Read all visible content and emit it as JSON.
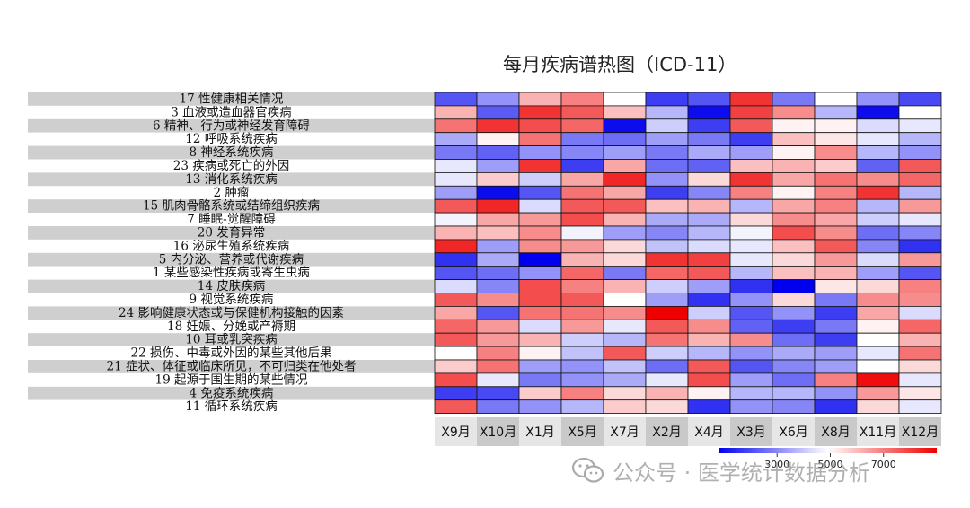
{
  "chart_data": {
    "type": "heatmap",
    "title": "每月疾病谱热图（ICD-11）",
    "rows": [
      "17 性健康相关情况",
      "3 血液或造血器官疾病",
      "6 精神、行为或神经发育障碍",
      "12 呼吸系统疾病",
      "8 神经系统疾病",
      "23 疾病或死亡的外因",
      "13 消化系统疾病",
      "2 肿瘤",
      "15 肌肉骨骼系统或结缔组织疾病",
      "7 睡眠-觉醒障碍",
      "20 发育异常",
      "16 泌尿生殖系统疾病",
      "5 内分泌、营养或代谢疾病",
      "1 某些感染性疾病或寄生虫病",
      "14 皮肤疾病",
      "9 视觉系统疾病",
      "24 影响健康状态或与保健机构接触的因素",
      "18 妊娠、分娩或产褥期",
      "10 耳或乳突疾病",
      "22 损伤、中毒或外因的某些其他后果",
      "21 症状、体征或临床所见，不可归类在他处者",
      "19 起源于围生期的某些情况",
      "4 免疫系统疾病",
      "11 循环系统疾病"
    ],
    "columns": [
      "X9月",
      "X10月",
      "X1月",
      "X5月",
      "X7月",
      "X2月",
      "X4月",
      "X3月",
      "X6月",
      "X8月",
      "X11月",
      "X12月"
    ],
    "values": [
      [
        2200,
        3200,
        6200,
        7000,
        5000,
        1800,
        2200,
        8200,
        2800,
        5000,
        3200,
        2000
      ],
      [
        6200,
        2300,
        8200,
        7600,
        6000,
        3800,
        1000,
        8000,
        6800,
        3800,
        1000,
        5000
      ],
      [
        7200,
        8200,
        7800,
        7400,
        1000,
        4200,
        1800,
        7600,
        5200,
        5200,
        4400,
        4600
      ],
      [
        3600,
        5200,
        7200,
        2800,
        2600,
        3400,
        2800,
        1800,
        6000,
        5400,
        4600,
        3800
      ],
      [
        2800,
        2400,
        3200,
        3000,
        3400,
        2800,
        3600,
        3400,
        5200,
        6800,
        3800,
        3200
      ],
      [
        4600,
        3400,
        8200,
        1800,
        6400,
        2600,
        2400,
        6000,
        6200,
        5800,
        2400,
        7600
      ],
      [
        4600,
        5800,
        4200,
        6400,
        8400,
        3200,
        5600,
        8200,
        6400,
        7200,
        6800,
        7400
      ],
      [
        3400,
        1000,
        2200,
        7200,
        6400,
        1800,
        3000,
        7000,
        5200,
        7000,
        8200,
        3800
      ],
      [
        7600,
        8400,
        4400,
        7600,
        7600,
        6000,
        6200,
        3800,
        6400,
        7000,
        3800,
        6600
      ],
      [
        4800,
        6400,
        6600,
        7800,
        6200,
        3600,
        3600,
        5600,
        6800,
        6400,
        4200,
        4600
      ],
      [
        6200,
        6000,
        6800,
        4800,
        3400,
        3000,
        3800,
        4800,
        7800,
        6800,
        2600,
        3000
      ],
      [
        8400,
        3400,
        6800,
        6600,
        5600,
        4000,
        4400,
        4600,
        6000,
        7600,
        3000,
        1600
      ],
      [
        1600,
        3600,
        600,
        6200,
        5600,
        8200,
        8000,
        4600,
        5600,
        6600,
        4400,
        6600
      ],
      [
        2200,
        2600,
        3200,
        7400,
        2800,
        7400,
        7600,
        3800,
        6000,
        6200,
        3400,
        2200
      ],
      [
        4400,
        3000,
        7800,
        7000,
        6200,
        4200,
        3400,
        1600,
        600,
        5400,
        5600,
        7000
      ],
      [
        7600,
        6800,
        7800,
        7600,
        5000,
        3400,
        1600,
        3200,
        5600,
        2800,
        6800,
        6800
      ],
      [
        6400,
        2200,
        7200,
        7200,
        6800,
        9000,
        4200,
        2200,
        3200,
        1800,
        6400,
        4400
      ],
      [
        7400,
        6600,
        4400,
        6600,
        4600,
        7600,
        6800,
        2400,
        1800,
        2800,
        5200,
        7400
      ],
      [
        7600,
        6600,
        6200,
        4200,
        3800,
        7200,
        6200,
        6800,
        2600,
        1800,
        5000,
        6200
      ],
      [
        5000,
        7000,
        5200,
        4000,
        7600,
        4200,
        3800,
        3200,
        3600,
        3400,
        4600,
        7200
      ],
      [
        5800,
        7200,
        3400,
        3200,
        4000,
        2600,
        7600,
        2200,
        3000,
        3400,
        5000,
        5600
      ],
      [
        7800,
        4600,
        2800,
        3200,
        3600,
        4600,
        7800,
        3400,
        2600,
        7000,
        8800,
        4600
      ],
      [
        1800,
        2000,
        5800,
        7000,
        5600,
        6200,
        5200,
        3800,
        3800,
        3200,
        6600,
        5400
      ],
      [
        7600,
        2800,
        3200,
        3800,
        5800,
        5600,
        1600,
        3200,
        3000,
        1600,
        5600,
        4600
      ]
    ],
    "colorbar": {
      "min": 800,
      "max": 9000,
      "mid": 5000,
      "ticks": [
        3000,
        5000,
        7000
      ],
      "colors": {
        "low": "#0000ee",
        "mid": "#ffffff",
        "high": "#ee0000"
      }
    },
    "legend": "bottom-right"
  },
  "watermark": {
    "text": "公众号 · 医学统计数据分析",
    "icon": "wechat-icon"
  }
}
